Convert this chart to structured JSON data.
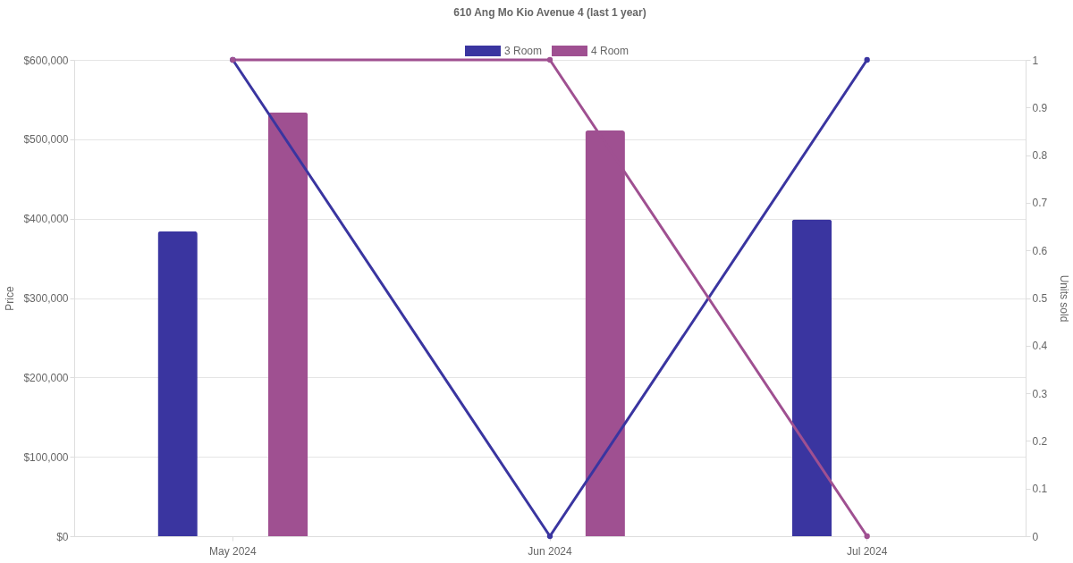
{
  "chart_data": {
    "type": "bar",
    "title": "610 Ang Mo Kio Avenue 4 (last 1 year)",
    "ylabel": "Price",
    "y2label": "Units sold",
    "categories": [
      "May 2024",
      "Jun 2024",
      "Jul 2024"
    ],
    "series": [
      {
        "name": "3 Room",
        "color": "#3a35a0",
        "values": [
          384000,
          null,
          399000
        ]
      },
      {
        "name": "4 Room",
        "color": "#9f5091",
        "values": [
          534000,
          511000,
          null
        ]
      },
      {
        "type": "line",
        "axis": "y2",
        "color": "#3a35a0",
        "values": [
          1,
          0,
          1
        ]
      },
      {
        "type": "line",
        "axis": "y2",
        "color": "#9f5091",
        "values": [
          1,
          1,
          0
        ]
      }
    ],
    "ylim": [
      0,
      600000
    ],
    "yticks": [
      {
        "value": 0,
        "label": "$0"
      },
      {
        "value": 100000,
        "label": "$100,000"
      },
      {
        "value": 200000,
        "label": "$200,000"
      },
      {
        "value": 300000,
        "label": "$300,000"
      },
      {
        "value": 400000,
        "label": "$400,000"
      },
      {
        "value": 500000,
        "label": "$500,000"
      },
      {
        "value": 600000,
        "label": "$600,000"
      }
    ],
    "y2lim": [
      0,
      1
    ],
    "y2ticks": [
      0,
      0.1,
      0.2,
      0.3,
      0.4,
      0.5,
      0.6,
      0.7,
      0.8,
      0.9,
      1
    ],
    "grid": "y",
    "legend": "top",
    "marker": "circle",
    "line_style": "solid"
  }
}
